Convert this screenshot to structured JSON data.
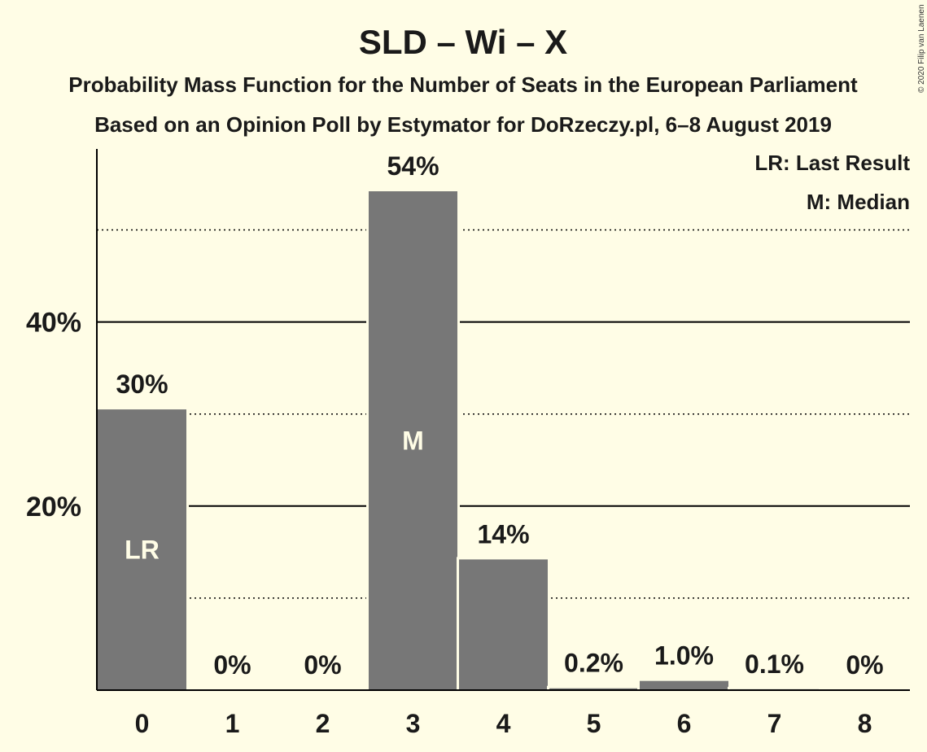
{
  "chart_data": {
    "type": "bar",
    "title": "SLD – Wi – X",
    "subtitle_lines": [
      "Probability Mass Function for the Number of Seats in the European Parliament",
      "Based on an Opinion Poll by Estymator for DoRzeczy.pl, 6–8 August 2019"
    ],
    "categories": [
      "0",
      "1",
      "2",
      "3",
      "4",
      "5",
      "6",
      "7",
      "8"
    ],
    "values": [
      30.5,
      0,
      0,
      54.2,
      14.2,
      0.2,
      1.0,
      0.1,
      0
    ],
    "data_labels": [
      "30%",
      "0%",
      "0%",
      "54%",
      "14%",
      "0.2%",
      "1.0%",
      "0.1%",
      "0%"
    ],
    "bar_markers": {
      "0": "LR",
      "3": "M"
    },
    "legend": [
      "LR: Last Result",
      "M: Median"
    ],
    "legend_position": "top-right",
    "ylim": [
      0,
      58.8
    ],
    "yticks": [
      {
        "value": 20,
        "label": "20%"
      },
      {
        "value": 40,
        "label": "40%"
      }
    ],
    "gridlines": {
      "solid": [
        20,
        40
      ],
      "dotted": [
        10,
        30,
        50
      ]
    },
    "xlabel": "",
    "ylabel": "",
    "colors": {
      "background": "#fffde6",
      "bar": "#777777",
      "text": "#1a1a1a",
      "grid": "#000000",
      "marker_text": "#fffde6"
    },
    "copyright": "© 2020 Filip van Laenen"
  }
}
